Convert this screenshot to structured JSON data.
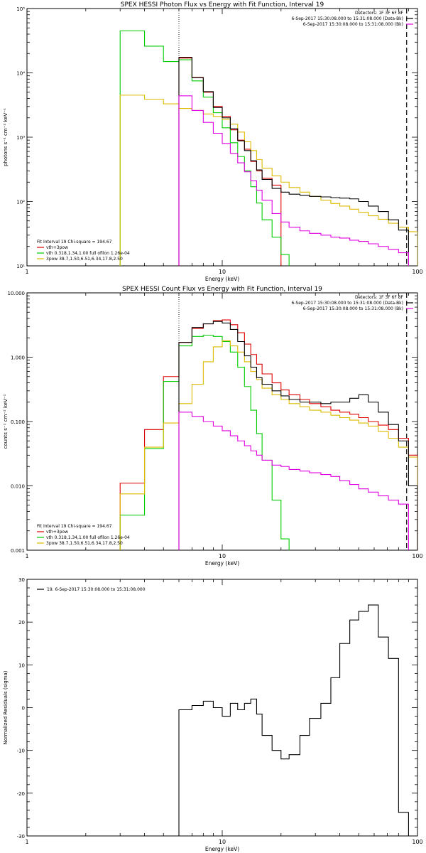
{
  "chart_data": [
    {
      "type": "line",
      "title": "SPEX HESSI Photon Flux vs Energy with Fit Function, Interval 19",
      "xlabel": "Energy (keV)",
      "ylabel": "photons s⁻¹ cm⁻² keV⁻¹",
      "xscale": "log",
      "yscale": "log",
      "xlim": [
        1,
        100
      ],
      "ylim": [
        10,
        100000
      ],
      "x_ticks": [
        {
          "value": 1,
          "label": "1"
        },
        {
          "value": 10,
          "label": "10"
        },
        {
          "value": 100,
          "label": "100"
        }
      ],
      "y_ticks": [
        {
          "value": 10,
          "label": "10¹"
        },
        {
          "value": 100,
          "label": "10²"
        },
        {
          "value": 1000,
          "label": "10³"
        },
        {
          "value": 10000,
          "label": "10⁴"
        },
        {
          "value": 100000,
          "label": "10⁵"
        }
      ],
      "info_lines": [
        "Detectors: 1F 3F 6F 8F",
        "6-Sep-2017 15:30:08.000 to 15:31:08.000 (Data-Bk)",
        "6-Sep-2017 15:30:08.000 to 15:31:08.000 (Bk)"
      ],
      "info_colors": [
        "",
        "#000000",
        "#e000e0"
      ],
      "legend_header": "Fit Interval 19   Chi-square = 194.67",
      "legend_position": "bottom-left",
      "vlines": [
        {
          "x": 6.0,
          "style": "dotted",
          "color": "#000000"
        },
        {
          "x": 88,
          "style": "dashed",
          "color": "#000000"
        }
      ],
      "series": [
        {
          "name": "vth+3pow",
          "color": "#dd0000",
          "edges": [
            6,
            7,
            8,
            9,
            10,
            11,
            12,
            13,
            14,
            15,
            16,
            18,
            20
          ],
          "values": [
            17000,
            8500,
            5000,
            3000,
            2100,
            1300,
            900,
            650,
            420,
            300,
            230,
            180
          ]
        },
        {
          "name": "vth 0.318,1.34,1.00  full ofilon 1.26e-04",
          "color": "#00cc00",
          "edges": [
            3,
            4,
            5,
            6,
            7,
            8,
            9,
            10,
            11,
            12,
            13,
            14,
            15,
            16,
            18,
            20,
            22
          ],
          "values": [
            45000,
            26000,
            15000,
            16000,
            7500,
            4200,
            2400,
            1400,
            820,
            500,
            300,
            170,
            95,
            52,
            28,
            15
          ]
        },
        {
          "name": "3pow 38.7,1.50,6.51,6.34,17.8,2.50",
          "color": "#ddbb00",
          "edges": [
            3,
            4,
            5,
            6,
            7,
            8,
            9,
            10,
            11,
            12,
            13,
            14,
            15,
            16,
            18,
            20,
            22,
            25,
            28,
            32,
            36,
            40,
            45,
            50,
            56,
            63,
            71,
            80,
            90,
            100
          ],
          "values": [
            4500,
            3900,
            3300,
            2800,
            2600,
            2300,
            2100,
            1900,
            1600,
            1200,
            850,
            620,
            450,
            330,
            250,
            200,
            165,
            140,
            120,
            105,
            93,
            85,
            76,
            68,
            60,
            53,
            46,
            40,
            34
          ]
        },
        {
          "name": "Data-Bk",
          "color": "#000000",
          "edges": [
            6,
            7,
            8,
            9,
            10,
            11,
            12,
            13,
            14,
            15,
            16,
            18,
            20,
            22,
            25,
            28,
            32,
            36,
            40,
            45,
            50,
            56,
            63,
            71,
            80,
            90
          ],
          "values": [
            17500,
            8400,
            5100,
            2900,
            2000,
            1350,
            880,
            620,
            430,
            310,
            220,
            160,
            140,
            130,
            125,
            120,
            118,
            115,
            113,
            110,
            100,
            85,
            70,
            52,
            36
          ]
        },
        {
          "name": "Bk",
          "color": "#e000e0",
          "edges": [
            6,
            7,
            8,
            9,
            10,
            11,
            12,
            13,
            14,
            15,
            16,
            18,
            20,
            22,
            25,
            28,
            32,
            36,
            40,
            45,
            50,
            56,
            63,
            71,
            80,
            90
          ],
          "values": [
            4400,
            2600,
            1700,
            1150,
            800,
            560,
            400,
            290,
            210,
            150,
            105,
            65,
            48,
            40,
            35,
            32,
            30,
            28,
            27,
            25,
            24,
            22,
            20,
            18,
            16
          ]
        }
      ]
    },
    {
      "type": "line",
      "title": "SPEX HESSI Count Flux vs Energy with Fit Function, Interval 19",
      "xlabel": "Energy (keV)",
      "ylabel": "counts s⁻¹ cm⁻² keV⁻¹",
      "xscale": "log",
      "yscale": "log",
      "xlim": [
        1,
        100
      ],
      "ylim": [
        0.001,
        10
      ],
      "x_ticks": [
        {
          "value": 1,
          "label": "1"
        },
        {
          "value": 10,
          "label": "10"
        },
        {
          "value": 100,
          "label": "100"
        }
      ],
      "y_ticks": [
        {
          "value": 0.001,
          "label": "0.001"
        },
        {
          "value": 0.01,
          "label": "0.010"
        },
        {
          "value": 0.1,
          "label": "0.100"
        },
        {
          "value": 1,
          "label": "1.000"
        },
        {
          "value": 10,
          "label": "10.000"
        }
      ],
      "info_lines": [
        "Detectors: 1F 3F 6F 8F",
        "6-Sep-2017 15:30:08.000 to 15:31:08.000 (Data-Bk)",
        "6-Sep-2017 15:30:08.000 to 15:31:08.000 (Bk)"
      ],
      "info_colors": [
        "",
        "#000000",
        "#e000e0"
      ],
      "legend_header": "Fit Interval 19   Chi-square = 194.67",
      "legend_position": "bottom-left",
      "vlines": [
        {
          "x": 6.0,
          "style": "dotted",
          "color": "#000000"
        },
        {
          "x": 88,
          "style": "dashed",
          "color": "#000000"
        }
      ],
      "series": [
        {
          "name": "vth+3pow",
          "color": "#dd0000",
          "edges": [
            3,
            4,
            5,
            6,
            7,
            8,
            9,
            10,
            11,
            12,
            13,
            14,
            15,
            16,
            18,
            20,
            22,
            25,
            28,
            32,
            36,
            40,
            45,
            50,
            56,
            63,
            71,
            80,
            90,
            100
          ],
          "values": [
            0.011,
            0.075,
            0.5,
            1.7,
            2.8,
            3.3,
            3.7,
            3.8,
            3.2,
            2.4,
            1.6,
            1.1,
            0.78,
            0.55,
            0.4,
            0.31,
            0.26,
            0.22,
            0.19,
            0.17,
            0.15,
            0.14,
            0.13,
            0.115,
            0.1,
            0.088,
            0.075,
            0.055,
            0.03
          ]
        },
        {
          "name": "vth 0.318,1.34,1.00  full ofilon 1.26e-04",
          "color": "#00cc00",
          "edges": [
            3,
            4,
            5,
            6,
            7,
            8,
            9,
            10,
            11,
            12,
            13,
            14,
            15,
            16,
            18,
            20,
            22
          ],
          "values": [
            0.0035,
            0.038,
            0.42,
            1.5,
            2.1,
            2.2,
            2.1,
            1.75,
            1.2,
            0.7,
            0.35,
            0.15,
            0.065,
            0.025,
            0.006,
            0.0015
          ]
        },
        {
          "name": "3pow 38.7,1.50,6.51,6.34,17.8,2.50",
          "color": "#ddbb00",
          "edges": [
            3,
            4,
            5,
            6,
            7,
            8,
            9,
            10,
            11,
            12,
            13,
            14,
            15,
            16,
            18,
            20,
            22,
            25,
            28,
            32,
            36,
            40,
            45,
            50,
            56,
            63,
            71,
            80,
            90,
            100
          ],
          "values": [
            0.0075,
            0.04,
            0.095,
            0.19,
            0.38,
            0.85,
            1.45,
            1.8,
            1.5,
            1.2,
            0.85,
            0.6,
            0.45,
            0.33,
            0.26,
            0.22,
            0.19,
            0.17,
            0.15,
            0.14,
            0.125,
            0.115,
            0.105,
            0.095,
            0.085,
            0.07,
            0.055,
            0.04,
            0.028
          ]
        },
        {
          "name": "Data-Bk",
          "color": "#000000",
          "edges": [
            6,
            7,
            8,
            9,
            10,
            11,
            12,
            13,
            14,
            15,
            16,
            18,
            20,
            22,
            25,
            28,
            32,
            36,
            40,
            45,
            50,
            56,
            63,
            71,
            80,
            90,
            100
          ],
          "values": [
            1.7,
            2.9,
            3.3,
            3.6,
            3.4,
            2.7,
            1.75,
            1.05,
            0.7,
            0.48,
            0.38,
            0.3,
            0.25,
            0.22,
            0.2,
            0.2,
            0.19,
            0.2,
            0.2,
            0.23,
            0.26,
            0.2,
            0.14,
            0.09,
            0.05,
            0.01
          ]
        },
        {
          "name": "Bk",
          "color": "#e000e0",
          "edges": [
            6,
            7,
            8,
            9,
            10,
            11,
            12,
            13,
            14,
            15,
            16,
            18,
            20,
            22,
            25,
            28,
            32,
            36,
            40,
            45,
            50,
            56,
            63,
            71,
            80,
            90
          ],
          "values": [
            0.14,
            0.12,
            0.1,
            0.085,
            0.072,
            0.06,
            0.05,
            0.042,
            0.035,
            0.03,
            0.025,
            0.021,
            0.02,
            0.018,
            0.017,
            0.016,
            0.015,
            0.014,
            0.012,
            0.0105,
            0.009,
            0.008,
            0.007,
            0.006,
            0.0052
          ]
        }
      ]
    },
    {
      "type": "line",
      "title": "",
      "xlabel": "Energy (keV)",
      "ylabel": "Normalized Residuals (sigma)",
      "xscale": "log",
      "yscale": "linear",
      "xlim": [
        1,
        100
      ],
      "ylim": [
        -30,
        30
      ],
      "x_ticks": [
        {
          "value": 1,
          "label": "1"
        },
        {
          "value": 10,
          "label": "10"
        },
        {
          "value": 100,
          "label": "100"
        }
      ],
      "y_ticks": [
        {
          "value": -30,
          "label": "-30"
        },
        {
          "value": -20,
          "label": "-20"
        },
        {
          "value": -10,
          "label": "-10"
        },
        {
          "value": 0,
          "label": "0"
        },
        {
          "value": 10,
          "label": "10"
        },
        {
          "value": 20,
          "label": "20"
        },
        {
          "value": 30,
          "label": "30"
        }
      ],
      "legend_position": "top-left",
      "series": [
        {
          "name": "19.  6-Sep-2017 15:30:08.000 to 15:31:08.000",
          "color": "#000000",
          "edges": [
            6,
            7,
            8,
            9,
            10,
            11,
            12,
            13,
            14,
            15,
            16,
            18,
            20,
            22,
            25,
            28,
            32,
            36,
            40,
            45,
            50,
            56,
            63,
            71,
            80,
            90
          ],
          "values": [
            -0.5,
            0.5,
            1.5,
            0.0,
            -2.0,
            1.0,
            -0.5,
            1.0,
            2.0,
            -1.5,
            -6.5,
            -10.0,
            -12.0,
            -11.0,
            -6.5,
            -2.5,
            1.0,
            7.0,
            15.0,
            20.5,
            22.5,
            24.0,
            16.5,
            11.5,
            -24.5
          ]
        }
      ]
    }
  ]
}
